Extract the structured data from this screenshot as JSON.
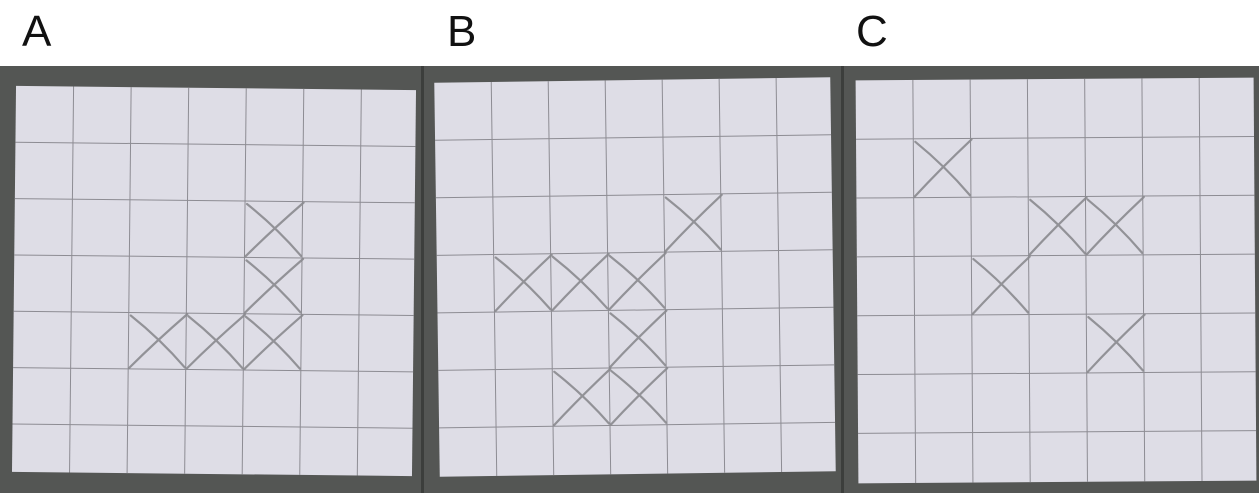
{
  "panels": [
    {
      "label": "A",
      "grid": {
        "rows": 7,
        "cols": 7
      },
      "marks": [
        {
          "row": 2,
          "col": 4
        },
        {
          "row": 3,
          "col": 4
        },
        {
          "row": 4,
          "col": 2
        },
        {
          "row": 4,
          "col": 3
        },
        {
          "row": 4,
          "col": 4
        }
      ]
    },
    {
      "label": "B",
      "grid": {
        "rows": 7,
        "cols": 7
      },
      "marks": [
        {
          "row": 2,
          "col": 4
        },
        {
          "row": 3,
          "col": 1
        },
        {
          "row": 3,
          "col": 2
        },
        {
          "row": 3,
          "col": 3
        },
        {
          "row": 4,
          "col": 3
        },
        {
          "row": 5,
          "col": 2
        },
        {
          "row": 5,
          "col": 3
        }
      ]
    },
    {
      "label": "C",
      "grid": {
        "rows": 7,
        "cols": 7
      },
      "marks": [
        {
          "row": 1,
          "col": 1
        },
        {
          "row": 2,
          "col": 3
        },
        {
          "row": 2,
          "col": 4
        },
        {
          "row": 3,
          "col": 2
        },
        {
          "row": 4,
          "col": 4
        }
      ]
    }
  ],
  "colors": {
    "background": "#545654",
    "paper": "#dedde6",
    "grid_line": "#8d8c93",
    "pencil": "#8a8a8f"
  }
}
